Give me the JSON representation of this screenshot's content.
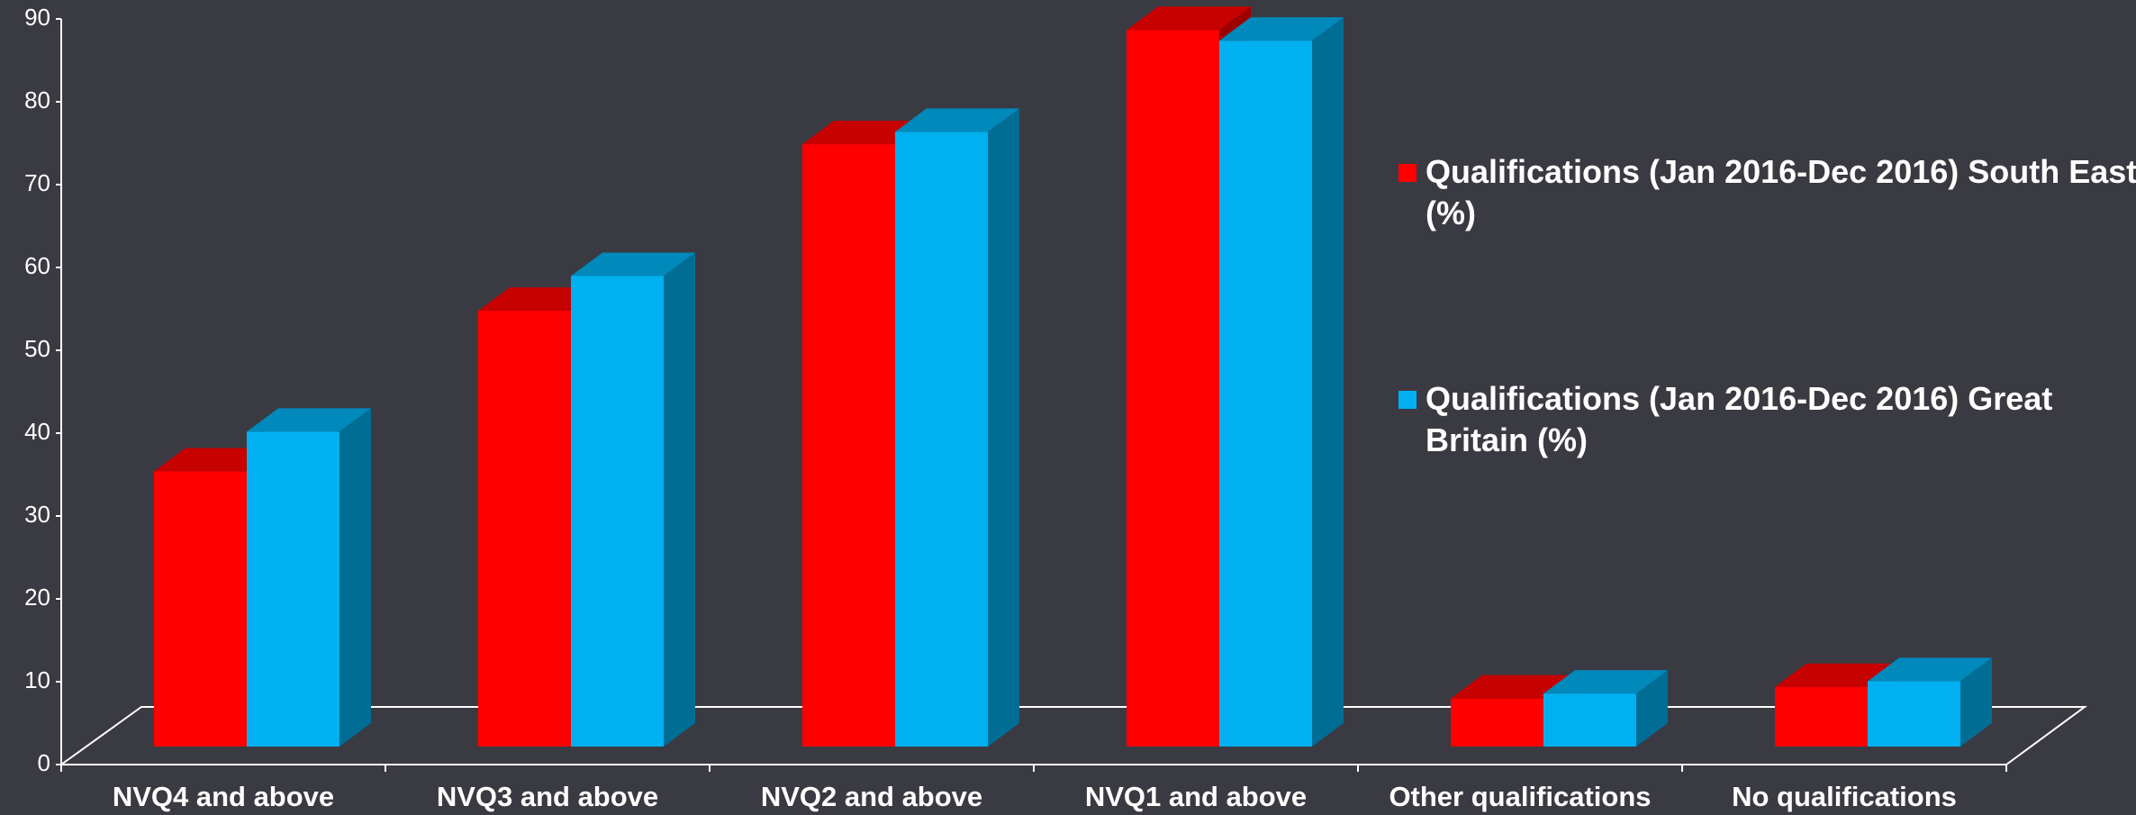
{
  "chart_data": {
    "type": "bar3d",
    "categories": [
      "NVQ4 and above",
      "NVQ3 and above",
      "NVQ2 and above",
      "NVQ1 and above",
      "Other qualifications",
      "No qualifications"
    ],
    "series": [
      {
        "name": "Qualifications (Jan 2016-Dec 2016) South East (%)",
        "color": "#ff0000",
        "values": [
          33.2,
          52.6,
          72.7,
          86.5,
          5.8,
          7.2
        ]
      },
      {
        "name": "Qualifications (Jan 2016-Dec 2016) Great Britain (%)",
        "color": "#00b0f0",
        "values": [
          38.0,
          56.8,
          74.2,
          85.2,
          6.4,
          7.9
        ]
      }
    ],
    "ylim": [
      0,
      90
    ],
    "yticks": [
      0,
      10,
      20,
      30,
      40,
      50,
      60,
      70,
      80,
      90
    ],
    "legend": "right"
  }
}
